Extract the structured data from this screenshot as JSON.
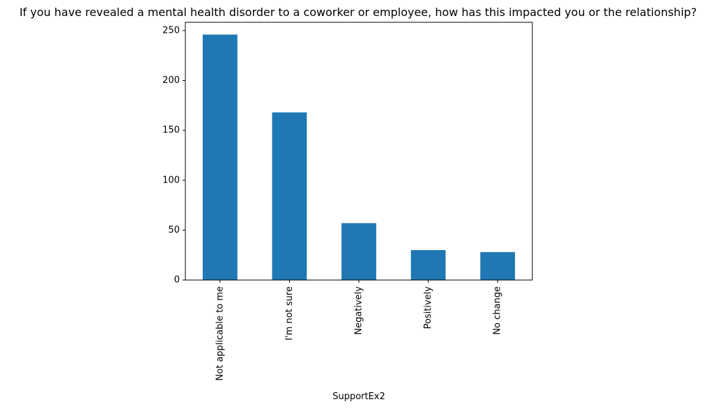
{
  "chart_data": {
    "type": "bar",
    "title": "If you have revealed a mental health disorder to a coworker or employee, how has this impacted you or the relationship?",
    "xlabel": "SupportEx2",
    "ylabel": "",
    "categories": [
      "Not applicable to me",
      "I'm not sure",
      "Negatively",
      "Positively",
      "No change"
    ],
    "values": [
      246,
      168,
      57,
      30,
      28
    ],
    "ylim": [
      0,
      258.3
    ],
    "yticks": [
      0,
      50,
      100,
      150,
      200,
      250
    ],
    "grid": false,
    "bar_color": "#1f77b4"
  }
}
